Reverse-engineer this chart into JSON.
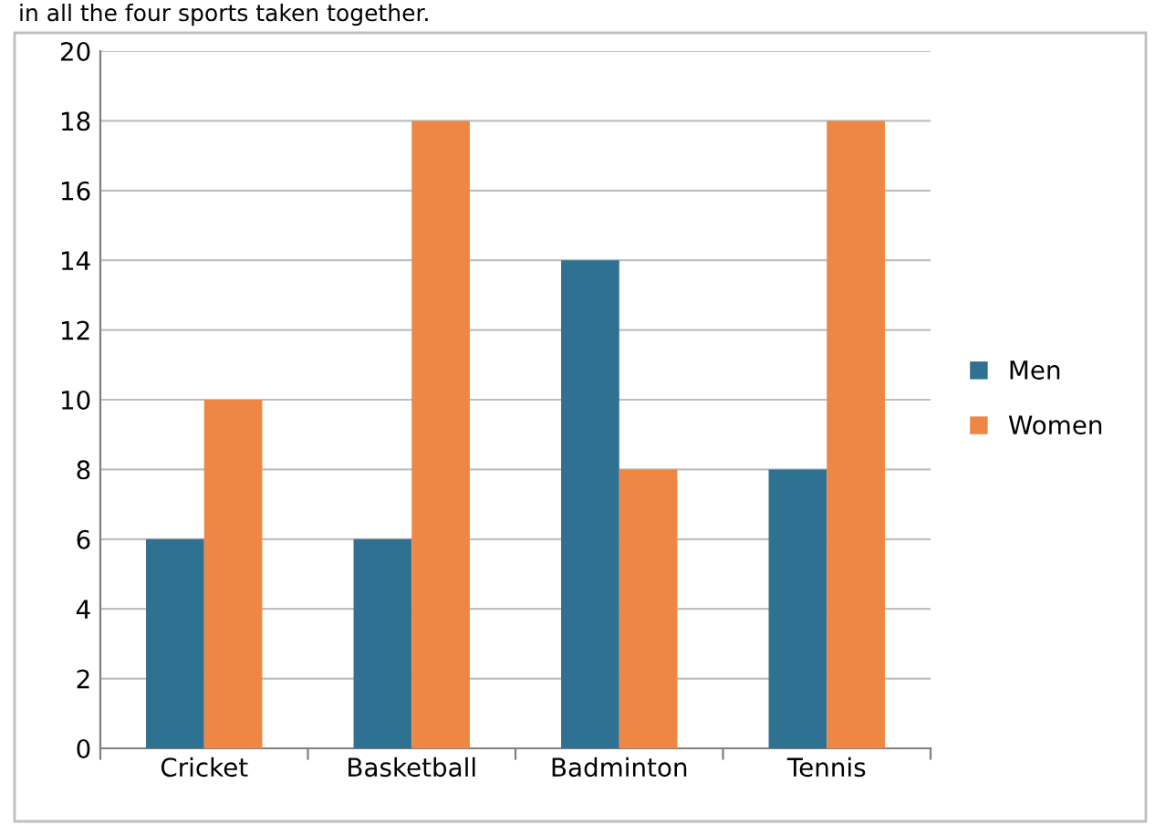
{
  "chart_data": {
    "type": "bar",
    "annotations": [
      "in all the four sports taken together."
    ],
    "categories": [
      "Cricket",
      "Basketball",
      "Badminton",
      "Tennis"
    ],
    "series": [
      {
        "name": "Men",
        "color": "#2e7191",
        "values": [
          6,
          6,
          14,
          8
        ]
      },
      {
        "name": "Women",
        "color": "#ee8744",
        "values": [
          10,
          18,
          8,
          18
        ]
      }
    ],
    "ylim": [
      0,
      20
    ],
    "yticks": [
      0,
      2,
      4,
      6,
      8,
      10,
      12,
      14,
      16,
      18,
      20
    ],
    "grid": "y",
    "legend": "right"
  }
}
